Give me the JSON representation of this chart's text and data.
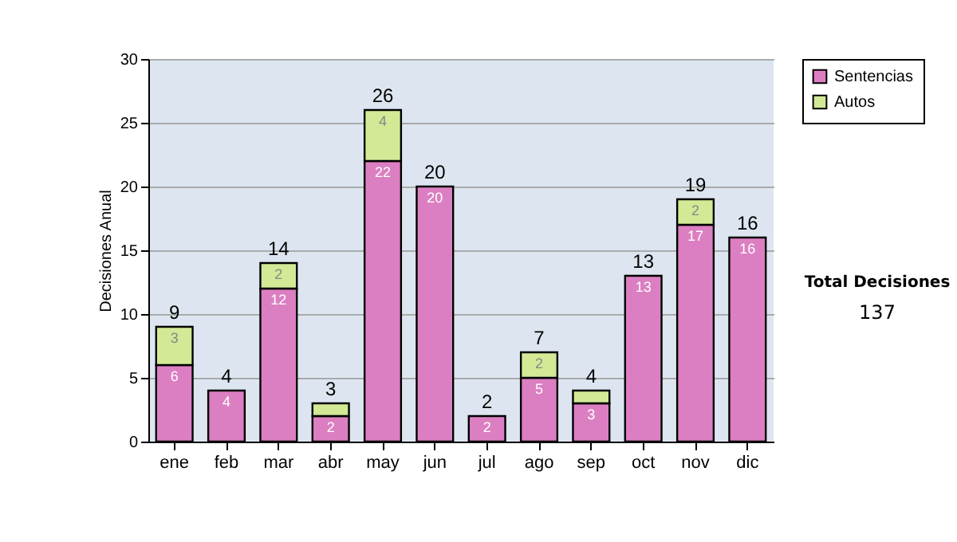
{
  "chart_data": {
    "type": "bar",
    "stacked": true,
    "ylabel": "Decisiones Anual",
    "categories": [
      "ene",
      "feb",
      "mar",
      "abr",
      "may",
      "jun",
      "jul",
      "ago",
      "sep",
      "oct",
      "nov",
      "dic"
    ],
    "series": [
      {
        "name": "Sentencias",
        "color": "#dc7fc2",
        "values": [
          6,
          4,
          12,
          2,
          22,
          20,
          2,
          5,
          3,
          13,
          17,
          16
        ],
        "value_labels": [
          "6",
          "4",
          "12",
          "2",
          "22",
          "20",
          "2",
          "5",
          "3",
          "13",
          "17",
          "16"
        ]
      },
      {
        "name": "Autos",
        "color": "#d3e996",
        "values": [
          3,
          null,
          2,
          1,
          4,
          null,
          null,
          2,
          1,
          null,
          2,
          null
        ],
        "value_labels": [
          "3",
          null,
          "2",
          null,
          "4",
          null,
          null,
          "2",
          null,
          null,
          "2",
          null
        ]
      }
    ],
    "totals": [
      "9",
      "4",
      "14",
      "3",
      "26",
      "20",
      "2",
      "7",
      "4",
      "13",
      "19",
      "16"
    ],
    "ylim": [
      0,
      30
    ],
    "yticks": [
      0,
      5,
      10,
      15,
      20,
      25,
      30
    ],
    "grid": "y",
    "legend": "right",
    "annotations": [
      "Total Decisiones",
      "137"
    ]
  }
}
